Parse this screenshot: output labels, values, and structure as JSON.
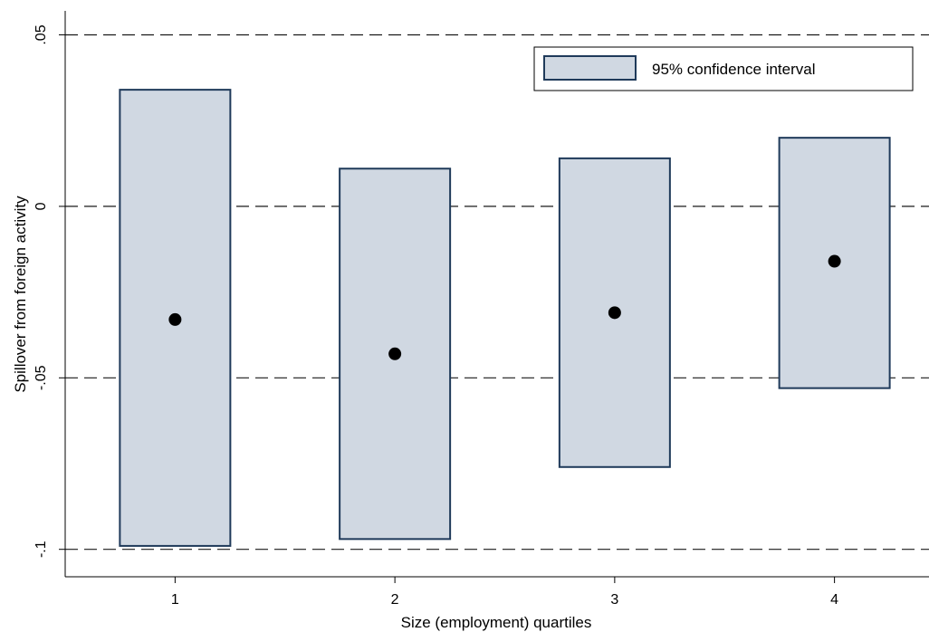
{
  "chart_data": {
    "type": "ci-box-plot",
    "categories": [
      "1",
      "2",
      "3",
      "4"
    ],
    "series": [
      {
        "name": "95% confidence interval",
        "kind": "interval",
        "lower": [
          -0.099,
          -0.097,
          -0.076,
          -0.053
        ],
        "upper": [
          0.034,
          0.011,
          0.014,
          0.02
        ],
        "fill": "#d0d8e2",
        "stroke": "#1f3a5a"
      },
      {
        "kind": "point",
        "values": [
          -0.033,
          -0.043,
          -0.031,
          -0.016
        ],
        "color": "#000000"
      }
    ],
    "xlabel": "Size (employment) quartiles",
    "ylabel": "Spillover from foreign activity",
    "x_ticks": [
      "1",
      "2",
      "3",
      "4"
    ],
    "y_ticks": [
      {
        "value": 0.05,
        "label": ".05"
      },
      {
        "value": 0,
        "label": "0"
      },
      {
        "value": -0.05,
        "label": "-.05"
      },
      {
        "value": -0.1,
        "label": "-.1"
      }
    ],
    "ylim": [
      -0.108,
      0.057
    ],
    "xlim": [
      0.5,
      4.43
    ],
    "grid": "dashed horizontal at y ticks",
    "legend": {
      "position": "top-right",
      "label": "95% confidence interval"
    }
  }
}
